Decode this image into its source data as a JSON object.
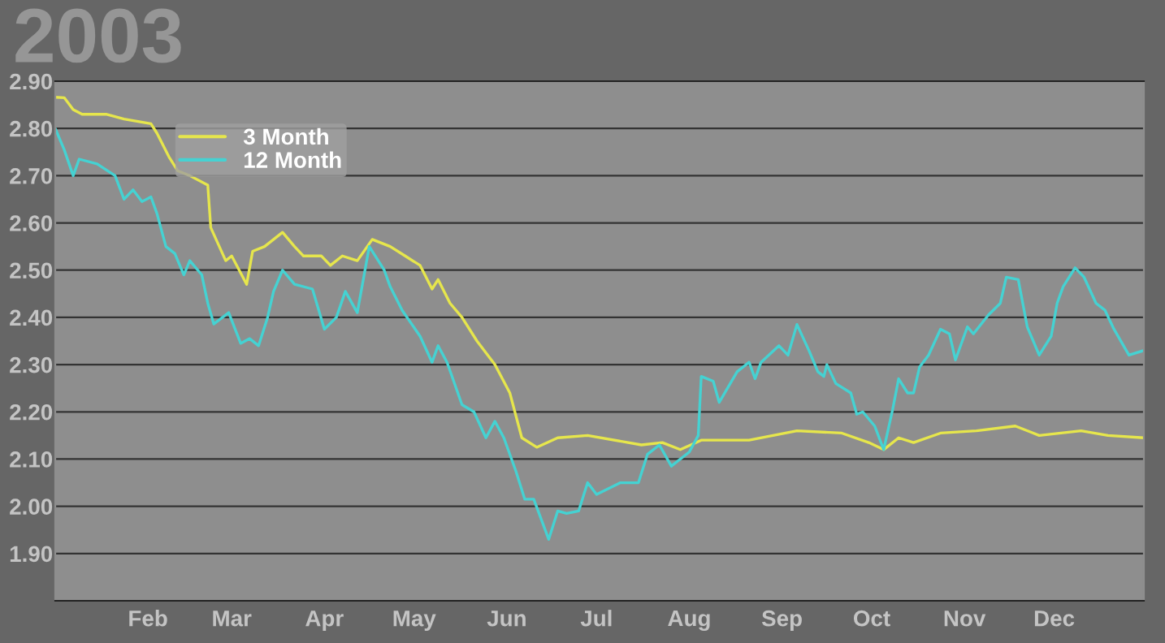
{
  "chart_data": {
    "type": "line",
    "title": "2003",
    "series": [
      {
        "name": "3 Month",
        "color": "#e6e64c",
        "x": [
          "2003-01-01",
          "2003-01-04",
          "2003-01-07",
          "2003-01-10",
          "2003-01-18",
          "2003-01-24",
          "2003-02-02",
          "2003-02-04",
          "2003-02-08",
          "2003-02-11",
          "2003-02-15",
          "2003-02-21",
          "2003-02-22",
          "2003-02-27",
          "2003-03-01",
          "2003-03-06",
          "2003-03-08",
          "2003-03-12",
          "2003-03-15",
          "2003-03-18",
          "2003-03-22",
          "2003-03-25",
          "2003-03-31",
          "2003-04-03",
          "2003-04-07",
          "2003-04-12",
          "2003-04-17",
          "2003-04-23",
          "2003-04-28",
          "2003-05-03",
          "2003-05-07",
          "2003-05-09",
          "2003-05-13",
          "2003-05-17",
          "2003-05-22",
          "2003-05-28",
          "2003-06-02",
          "2003-06-06",
          "2003-06-11",
          "2003-06-18",
          "2003-06-28",
          "2003-07-16",
          "2003-07-23",
          "2003-07-29",
          "2003-08-05",
          "2003-08-21",
          "2003-09-06",
          "2003-09-21",
          "2003-09-30",
          "2003-10-05",
          "2003-10-10",
          "2003-10-15",
          "2003-10-24",
          "2003-11-05",
          "2003-11-18",
          "2003-11-26",
          "2003-12-10",
          "2003-12-19",
          "2003-12-31"
        ],
        "values": [
          2.866,
          2.865,
          2.84,
          2.83,
          2.83,
          2.82,
          2.81,
          2.79,
          2.74,
          2.71,
          2.7,
          2.68,
          2.59,
          2.52,
          2.53,
          2.47,
          2.54,
          2.55,
          2.565,
          2.58,
          2.55,
          2.53,
          2.53,
          2.51,
          2.53,
          2.52,
          2.565,
          2.55,
          2.53,
          2.51,
          2.46,
          2.48,
          2.43,
          2.4,
          2.35,
          2.3,
          2.24,
          2.145,
          2.125,
          2.145,
          2.15,
          2.13,
          2.135,
          2.12,
          2.14,
          2.14,
          2.16,
          2.155,
          2.135,
          2.12,
          2.145,
          2.135,
          2.155,
          2.16,
          2.17,
          2.15,
          2.16,
          2.15,
          2.145
        ]
      },
      {
        "name": "12 Month",
        "color": "#45d2d2",
        "x": [
          "2003-01-01",
          "2003-01-04",
          "2003-01-07",
          "2003-01-09",
          "2003-01-15",
          "2003-01-21",
          "2003-01-24",
          "2003-01-27",
          "2003-01-30",
          "2003-02-02",
          "2003-02-04",
          "2003-02-07",
          "2003-02-10",
          "2003-02-13",
          "2003-02-15",
          "2003-02-19",
          "2003-02-21",
          "2003-02-23",
          "2003-02-28",
          "2003-03-04",
          "2003-03-07",
          "2003-03-10",
          "2003-03-13",
          "2003-03-15",
          "2003-03-18",
          "2003-03-22",
          "2003-03-28",
          "2003-04-01",
          "2003-04-05",
          "2003-04-08",
          "2003-04-12",
          "2003-04-16",
          "2003-04-21",
          "2003-04-23",
          "2003-04-27",
          "2003-05-03",
          "2003-05-07",
          "2003-05-09",
          "2003-05-12",
          "2003-05-17",
          "2003-05-21",
          "2003-05-25",
          "2003-05-28",
          "2003-05-31",
          "2003-06-04",
          "2003-06-07",
          "2003-06-10",
          "2003-06-15",
          "2003-06-18",
          "2003-06-21",
          "2003-06-25",
          "2003-06-28",
          "2003-07-01",
          "2003-07-09",
          "2003-07-15",
          "2003-07-18",
          "2003-07-22",
          "2003-07-26",
          "2003-08-01",
          "2003-08-04",
          "2003-08-05",
          "2003-08-09",
          "2003-08-11",
          "2003-08-17",
          "2003-08-21",
          "2003-08-23",
          "2003-08-25",
          "2003-08-31",
          "2003-09-03",
          "2003-09-06",
          "2003-09-10",
          "2003-09-13",
          "2003-09-15",
          "2003-09-16",
          "2003-09-19",
          "2003-09-24",
          "2003-09-26",
          "2003-09-28",
          "2003-10-02",
          "2003-10-05",
          "2003-10-08",
          "2003-10-10",
          "2003-10-13",
          "2003-10-15",
          "2003-10-17",
          "2003-10-20",
          "2003-10-24",
          "2003-10-27",
          "2003-10-29",
          "2003-11-02",
          "2003-11-04",
          "2003-11-09",
          "2003-11-13",
          "2003-11-15",
          "2003-11-19",
          "2003-11-22",
          "2003-11-26",
          "2003-11-30",
          "2003-12-02",
          "2003-12-04",
          "2003-12-08",
          "2003-12-11",
          "2003-12-15",
          "2003-12-18",
          "2003-12-21",
          "2003-12-26",
          "2003-12-31"
        ],
        "values": [
          2.8,
          2.755,
          2.7,
          2.735,
          2.725,
          2.7,
          2.65,
          2.67,
          2.645,
          2.655,
          2.62,
          2.55,
          2.535,
          2.49,
          2.52,
          2.49,
          2.43,
          2.386,
          2.41,
          2.345,
          2.355,
          2.34,
          2.4,
          2.455,
          2.5,
          2.47,
          2.46,
          2.375,
          2.4,
          2.455,
          2.41,
          2.55,
          2.5,
          2.465,
          2.415,
          2.36,
          2.305,
          2.34,
          2.305,
          2.215,
          2.2,
          2.145,
          2.18,
          2.145,
          2.075,
          2.015,
          2.015,
          1.93,
          1.99,
          1.985,
          1.99,
          2.05,
          2.025,
          2.05,
          2.05,
          2.11,
          2.13,
          2.085,
          2.115,
          2.15,
          2.275,
          2.265,
          2.22,
          2.285,
          2.305,
          2.27,
          2.305,
          2.34,
          2.32,
          2.385,
          2.33,
          2.285,
          2.275,
          2.3,
          2.26,
          2.24,
          2.195,
          2.2,
          2.17,
          2.12,
          2.205,
          2.27,
          2.24,
          2.24,
          2.295,
          2.32,
          2.375,
          2.365,
          2.31,
          2.38,
          2.365,
          2.405,
          2.43,
          2.485,
          2.48,
          2.38,
          2.32,
          2.36,
          2.43,
          2.465,
          2.505,
          2.485,
          2.43,
          2.415,
          2.375,
          2.32,
          2.33
        ]
      }
    ],
    "xlim": [
      "2003-01-01",
      "2003-12-31"
    ],
    "xticks": [
      {
        "value": "2003-02-01",
        "label": "Feb"
      },
      {
        "value": "2003-03-01",
        "label": "Mar"
      },
      {
        "value": "2003-04-01",
        "label": "Apr"
      },
      {
        "value": "2003-05-01",
        "label": "May"
      },
      {
        "value": "2003-06-01",
        "label": "Jun"
      },
      {
        "value": "2003-07-01",
        "label": "Jul"
      },
      {
        "value": "2003-08-01",
        "label": "Aug"
      },
      {
        "value": "2003-09-01",
        "label": "Sep"
      },
      {
        "value": "2003-10-01",
        "label": "Oct"
      },
      {
        "value": "2003-11-01",
        "label": "Nov"
      },
      {
        "value": "2003-12-01",
        "label": "Dec"
      }
    ],
    "ylim": [
      1.8,
      2.9
    ],
    "yticks": [
      {
        "value": 1.9,
        "label": "1.90"
      },
      {
        "value": 2.0,
        "label": "2.00"
      },
      {
        "value": 2.1,
        "label": "2.10"
      },
      {
        "value": 2.2,
        "label": "2.20"
      },
      {
        "value": 2.3,
        "label": "2.30"
      },
      {
        "value": 2.4,
        "label": "2.40"
      },
      {
        "value": 2.5,
        "label": "2.50"
      },
      {
        "value": 2.6,
        "label": "2.60"
      },
      {
        "value": 2.7,
        "label": "2.70"
      },
      {
        "value": 2.8,
        "label": "2.80"
      },
      {
        "value": 2.9,
        "label": "2.90"
      }
    ],
    "grid": "y",
    "legend": "top left",
    "marker": "none",
    "line_style": "solid"
  }
}
